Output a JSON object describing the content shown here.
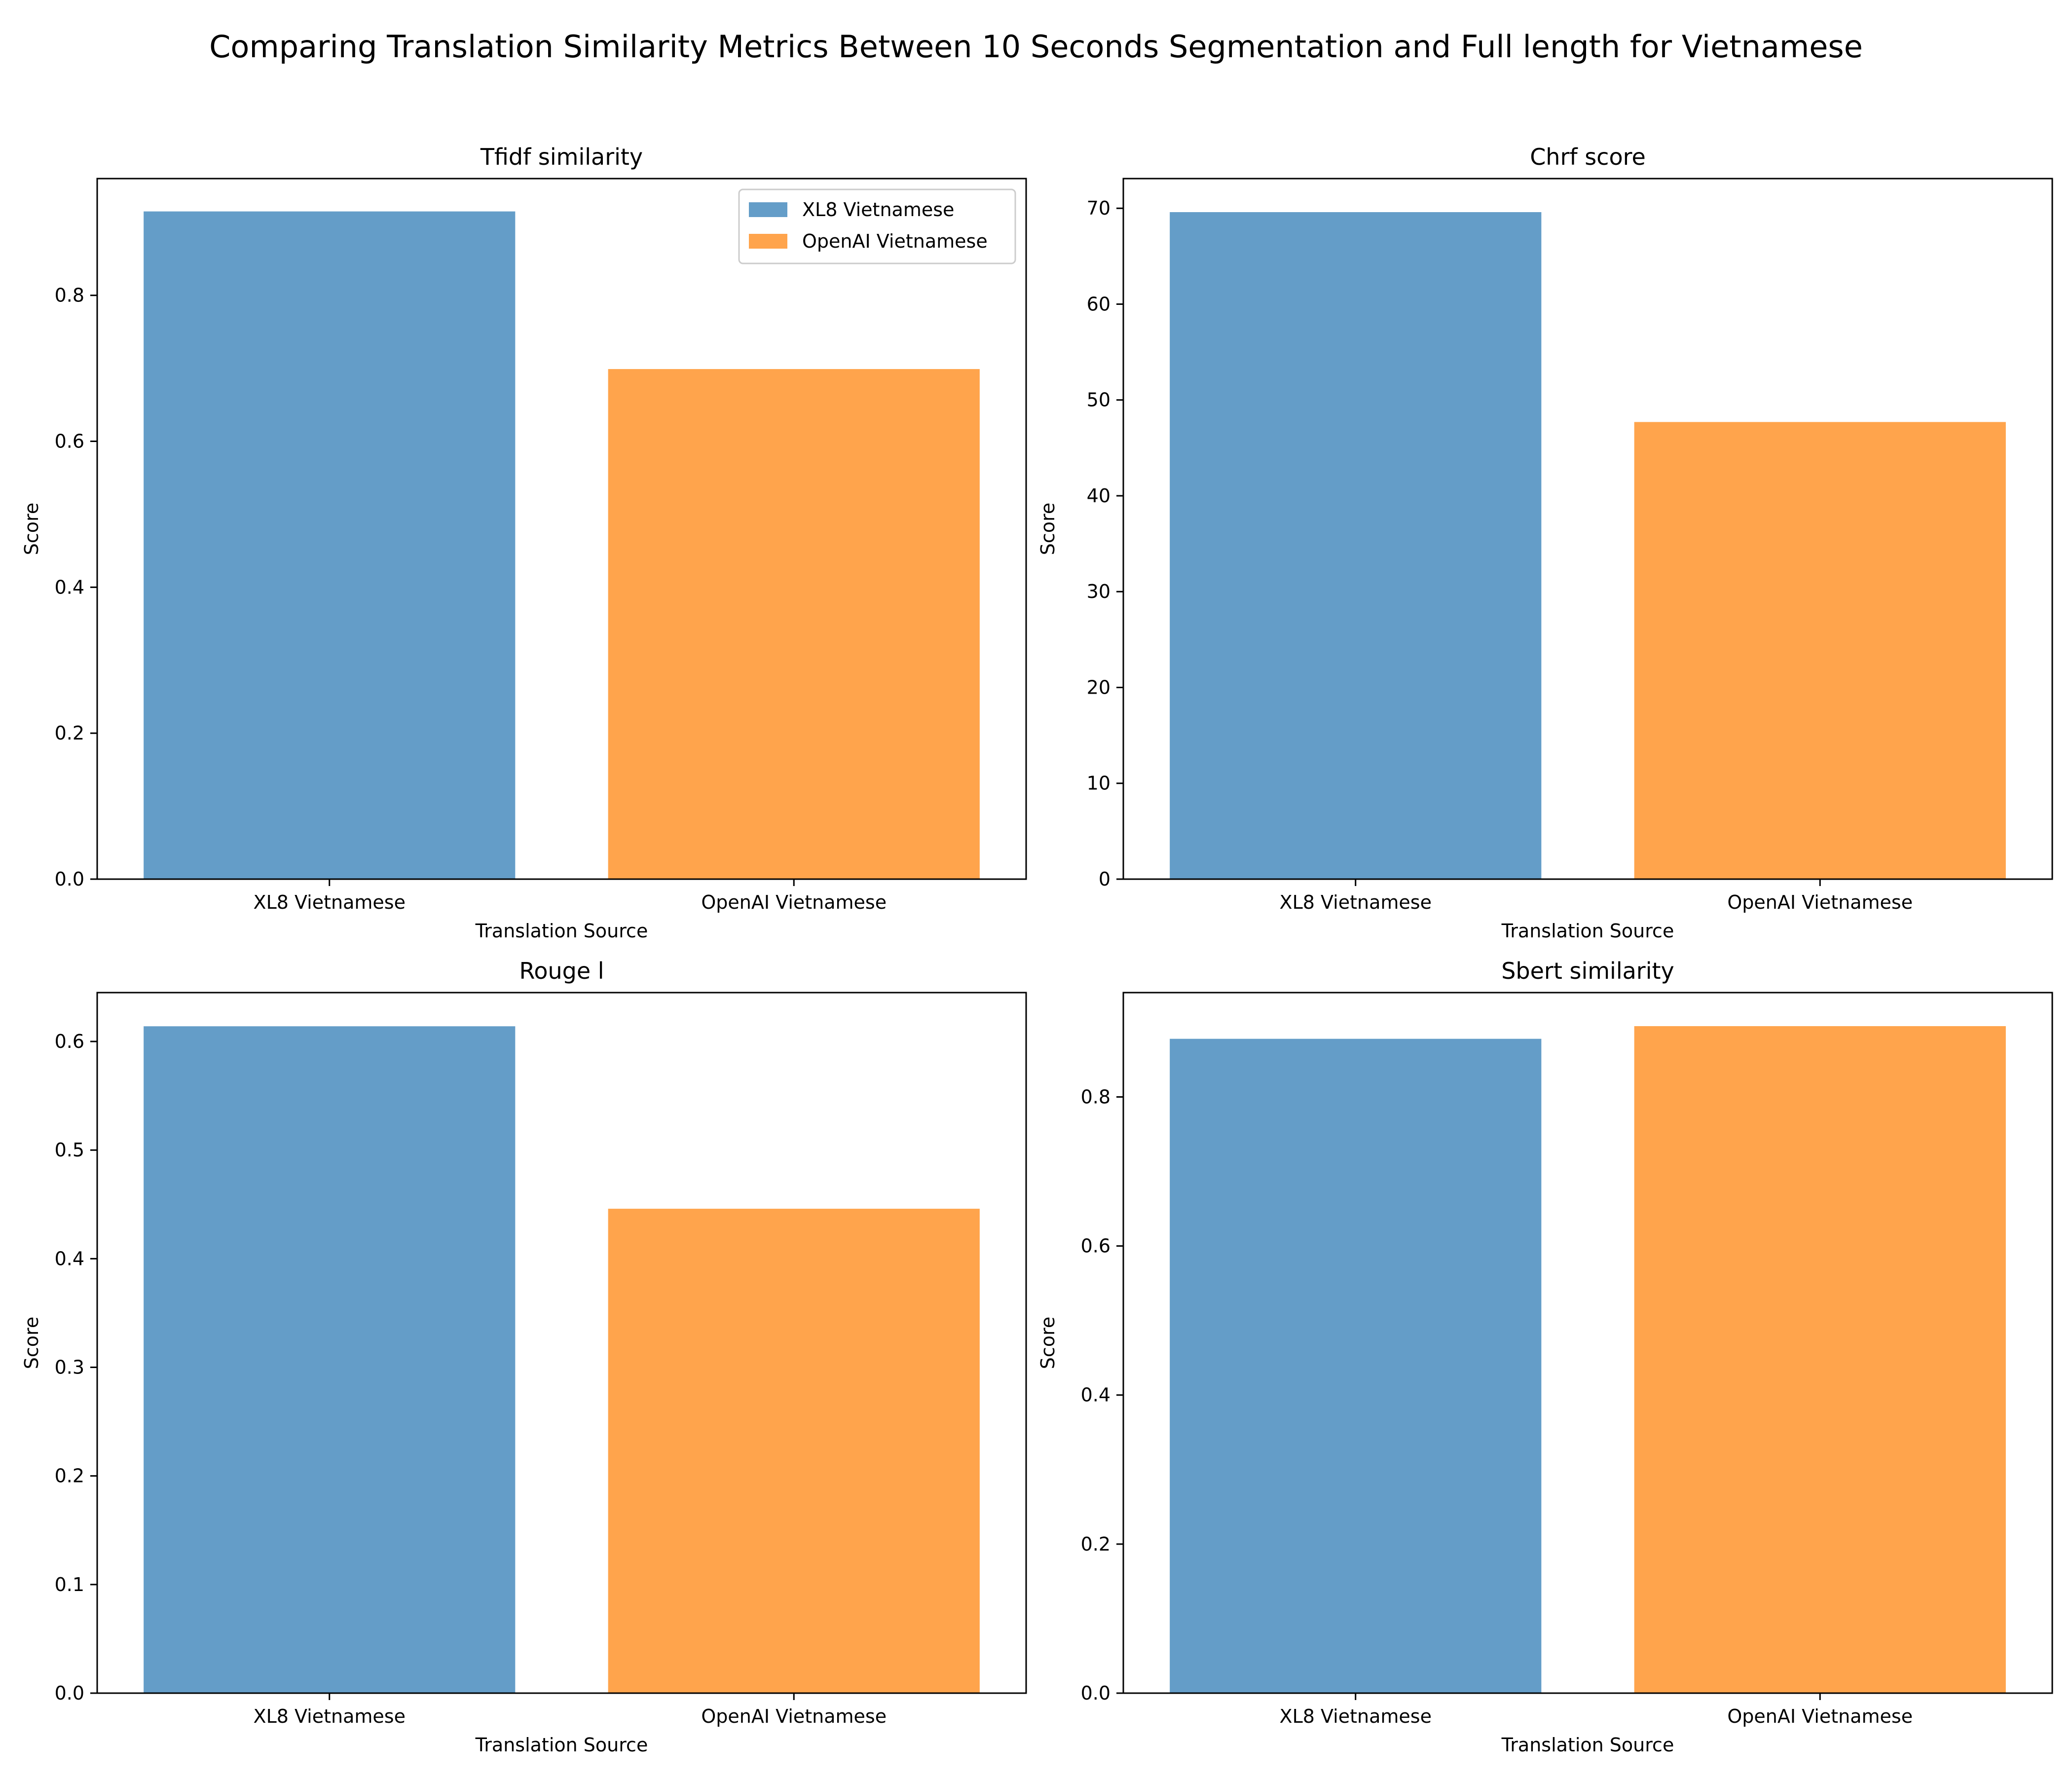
{
  "figure": {
    "title": "Comparing Translation Similarity Metrics Between 10 Seconds Segmentation and Full length for Vietnamese"
  },
  "colors": {
    "xl8": "#4f8fc0",
    "openai": "#ff9733"
  },
  "chart_data": [
    {
      "type": "bar",
      "title": "Tfidf similarity",
      "xlabel": "Translation Source",
      "ylabel": "Score",
      "categories": [
        "XL8 Vietnamese",
        "OpenAI Vietnamese"
      ],
      "values": [
        0.915,
        0.699
      ],
      "ylim": [
        0,
        0.96
      ],
      "yticks": [
        "0.0",
        "0.2",
        "0.4",
        "0.6",
        "0.8"
      ],
      "ytick_values": [
        0,
        0.2,
        0.4,
        0.6,
        0.8
      ],
      "legend": {
        "placement": "top-right",
        "entries": [
          "XL8 Vietnamese",
          "OpenAI Vietnamese"
        ]
      },
      "grid": false
    },
    {
      "type": "bar",
      "title": "Chrf score",
      "xlabel": "Translation Source",
      "ylabel": "Score",
      "categories": [
        "XL8 Vietnamese",
        "OpenAI Vietnamese"
      ],
      "values": [
        69.6,
        47.7
      ],
      "ylim": [
        0,
        73.1
      ],
      "yticks": [
        "0",
        "10",
        "20",
        "30",
        "40",
        "50",
        "60",
        "70"
      ],
      "ytick_values": [
        0,
        10,
        20,
        30,
        40,
        50,
        60,
        70
      ],
      "grid": false
    },
    {
      "type": "bar",
      "title": "Rouge l",
      "xlabel": "Translation Source",
      "ylabel": "Score",
      "categories": [
        "XL8 Vietnamese",
        "OpenAI Vietnamese"
      ],
      "values": [
        0.614,
        0.446
      ],
      "ylim": [
        0,
        0.645
      ],
      "yticks": [
        "0.0",
        "0.1",
        "0.2",
        "0.3",
        "0.4",
        "0.5",
        "0.6"
      ],
      "ytick_values": [
        0,
        0.1,
        0.2,
        0.3,
        0.4,
        0.5,
        0.6
      ],
      "grid": false
    },
    {
      "type": "bar",
      "title": "Sbert similarity",
      "xlabel": "Translation Source",
      "ylabel": "Score",
      "categories": [
        "XL8 Vietnamese",
        "OpenAI Vietnamese"
      ],
      "values": [
        0.878,
        0.895
      ],
      "ylim": [
        0,
        0.94
      ],
      "yticks": [
        "0.0",
        "0.2",
        "0.4",
        "0.6",
        "0.8"
      ],
      "ytick_values": [
        0,
        0.2,
        0.4,
        0.6,
        0.8
      ],
      "grid": false
    }
  ]
}
